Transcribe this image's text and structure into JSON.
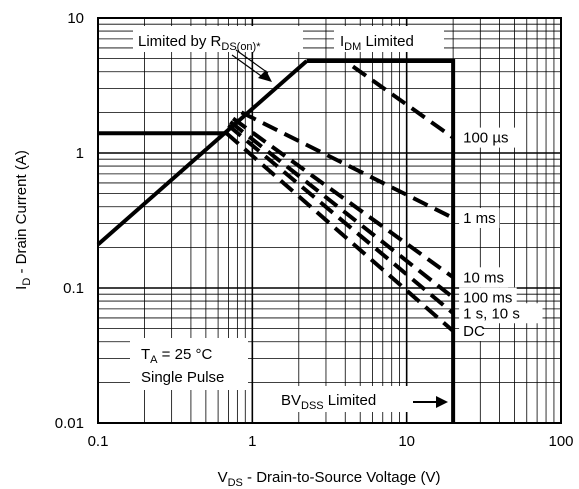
{
  "chart_data": {
    "type": "line",
    "x_scale": "log",
    "y_scale": "log",
    "xlim": [
      0.1,
      100
    ],
    "ylim": [
      0.01,
      10
    ],
    "grid": true,
    "xlabel": {
      "main": "V",
      "sub": "DS",
      "rest": " - Drain-to-Source Voltage (V)"
    },
    "ylabel": {
      "main": "I",
      "sub": "D",
      "rest": " - Drain Current (A)"
    },
    "x_ticks": [
      {
        "v": 0.1,
        "label": "0.1"
      },
      {
        "v": 1,
        "label": "1"
      },
      {
        "v": 10,
        "label": "10"
      },
      {
        "v": 100,
        "label": "100"
      }
    ],
    "y_ticks": [
      {
        "v": 0.01,
        "label": "0.01"
      },
      {
        "v": 0.1,
        "label": "0.1"
      },
      {
        "v": 1,
        "label": "1"
      },
      {
        "v": 10,
        "label": "10"
      }
    ],
    "series": [
      {
        "name": "",
        "style": "solid",
        "points": [
          [
            0.1,
            0.21
          ],
          [
            2.25,
            4.8
          ]
        ]
      },
      {
        "name": "",
        "style": "solid",
        "points": [
          [
            2.25,
            4.8
          ],
          [
            20,
            4.8
          ],
          [
            20,
            0.01
          ]
        ]
      },
      {
        "name": "",
        "style": "solid",
        "points": [
          [
            0.1,
            1.4
          ],
          [
            0.68,
            1.4
          ]
        ]
      },
      {
        "name": "100 µs",
        "style": "dashed",
        "points": [
          [
            2.25,
            4.8
          ],
          [
            4.0,
            4.8
          ],
          [
            20,
            1.3
          ]
        ]
      },
      {
        "name": "1 ms",
        "style": "dashed",
        "points": [
          [
            0.85,
            2.0
          ],
          [
            20,
            0.33
          ]
        ]
      },
      {
        "name": "10 ms",
        "style": "dashed",
        "points": [
          [
            0.75,
            1.8
          ],
          [
            20,
            0.12
          ]
        ]
      },
      {
        "name": "100 ms",
        "style": "dashed",
        "points": [
          [
            0.72,
            1.7
          ],
          [
            20,
            0.085
          ]
        ]
      },
      {
        "name": "1 s, 10 s",
        "style": "dashed",
        "points": [
          [
            0.7,
            1.6
          ],
          [
            20,
            0.065
          ]
        ]
      },
      {
        "name": "DC",
        "style": "dashed",
        "points": [
          [
            0.68,
            1.4
          ],
          [
            20,
            0.048
          ]
        ]
      }
    ],
    "annotations": {
      "rds": {
        "text": "Limited by R",
        "sub": "DS(on)*"
      },
      "idm": {
        "text": "I",
        "sub": "DM",
        "rest": " Limited"
      },
      "bvdss": {
        "text": "BV",
        "sub": "DSS",
        "rest": " Limited"
      },
      "conditions": {
        "line1_main": "T",
        "line1_sub": "A",
        "line1_rest": " = 25 °C",
        "line2": "Single Pulse"
      }
    }
  }
}
